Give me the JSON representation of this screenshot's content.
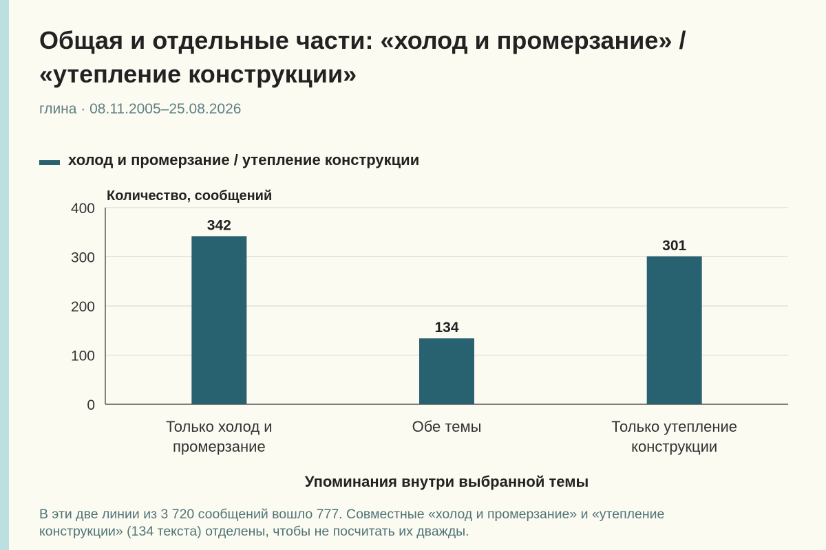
{
  "title": "Общая и отдельные части: «холод и промерзание» / «утепление конструкции»",
  "subtitle": "глина · 08.11.2005–25.08.2026",
  "footnote": "В эти две линии из 3 720 сообщений вошло 777. Совместные «холод и промерзание» и «утепление конструкции» (134 текста) отделены, чтобы не посчитать их дважды.",
  "colors": {
    "bar": "#286170",
    "accent_strip": "#bcdfe0",
    "background": "#fcfbf2"
  },
  "chart_data": {
    "type": "bar",
    "categories": [
      [
        "Только холод и",
        "промерзание"
      ],
      [
        "Обе темы"
      ],
      [
        "Только утепление",
        "конструкции"
      ]
    ],
    "series": [
      {
        "name": "холод и промерзание / утепление конструкции",
        "values": [
          342,
          134,
          301
        ]
      }
    ],
    "data_labels": [
      "342",
      "134",
      "301"
    ],
    "xlabel": "Упоминания внутри выбранной темы",
    "ylabel": "Количество, сообщений",
    "ylim": [
      0,
      400
    ],
    "yticks": [
      0,
      100,
      200,
      300,
      400
    ],
    "grid": true,
    "legend_position": "top-left"
  }
}
